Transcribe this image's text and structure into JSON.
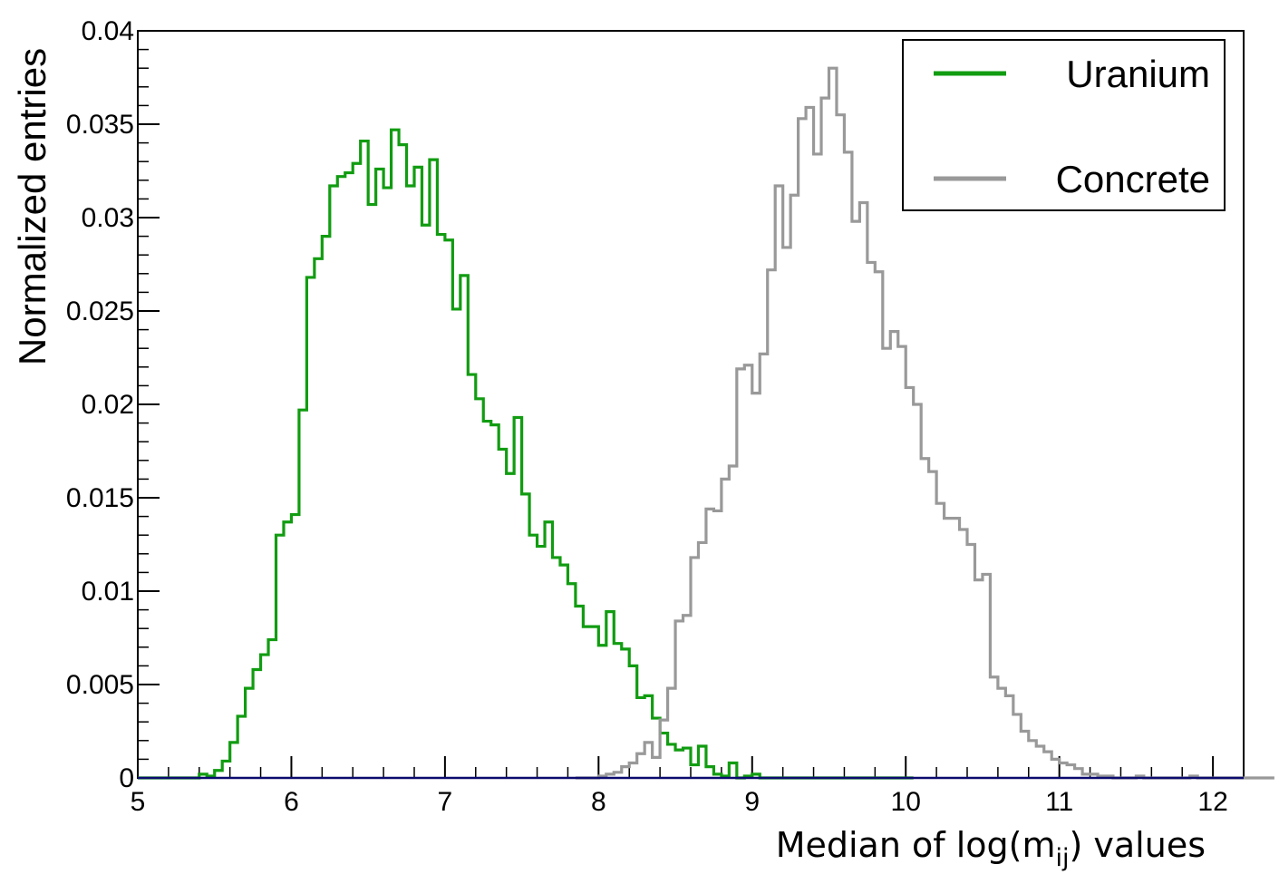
{
  "chart_data": {
    "type": "histogram",
    "xlabel_main": "Median of log(m",
    "xlabel_sub": "ij",
    "xlabel_tail": ") values",
    "ylabel": "Normalized entries",
    "xlim": [
      5,
      12.2
    ],
    "ylim": [
      0,
      0.04
    ],
    "grid": false,
    "legend_position": "top-right",
    "x_ticks": [
      "5",
      "6",
      "7",
      "8",
      "9",
      "10",
      "11",
      "12"
    ],
    "y_ticks": [
      "0",
      "0.005",
      "0.01",
      "0.015",
      "0.02",
      "0.025",
      "0.03",
      "0.035",
      "0.04"
    ],
    "bin_width": 0.05,
    "series": [
      {
        "name": "Uranium",
        "color": "#119c11",
        "x_start": 5.0,
        "values": [
          0,
          0,
          0,
          0,
          0,
          0,
          0,
          0,
          0.0002,
          0.0001,
          0.0004,
          0.0009,
          0.0019,
          0.0033,
          0.0048,
          0.0058,
          0.0066,
          0.0074,
          0.013,
          0.0137,
          0.0141,
          0.0197,
          0.0268,
          0.0278,
          0.029,
          0.0317,
          0.0322,
          0.0324,
          0.0329,
          0.0341,
          0.0307,
          0.0326,
          0.0316,
          0.0347,
          0.0339,
          0.0317,
          0.0327,
          0.0296,
          0.0331,
          0.0291,
          0.0288,
          0.0251,
          0.0269,
          0.0216,
          0.0203,
          0.0191,
          0.0189,
          0.0176,
          0.0163,
          0.0193,
          0.0152,
          0.013,
          0.0124,
          0.0137,
          0.0118,
          0.0114,
          0.0104,
          0.0092,
          0.0081,
          0.0081,
          0.0071,
          0.0089,
          0.0072,
          0.0069,
          0.006,
          0.0043,
          0.0044,
          0.0032,
          0.0024,
          0.0018,
          0.0015,
          0.0016,
          0.0007,
          0.0017,
          0.0006,
          0.0002,
          0.0001,
          0.0008,
          0,
          0.0001,
          0.0002,
          0,
          0,
          0,
          0,
          0,
          0,
          0,
          0,
          0,
          0,
          0,
          0,
          0,
          0,
          0,
          0,
          0,
          0,
          0,
          0
        ],
        "x_end": 10.05
      },
      {
        "name": "Concrete",
        "color": "#999999",
        "x_start": 7.85,
        "values": [
          0,
          0,
          0,
          0.0001,
          0.0002,
          0.0003,
          0.0006,
          0.0008,
          0.0013,
          0.0019,
          0.0011,
          0.0031,
          0.0048,
          0.0084,
          0.0087,
          0.0118,
          0.0126,
          0.0144,
          0.0143,
          0.016,
          0.0167,
          0.0219,
          0.0221,
          0.0206,
          0.0227,
          0.0272,
          0.0317,
          0.0284,
          0.0312,
          0.0353,
          0.0359,
          0.0334,
          0.0364,
          0.038,
          0.0355,
          0.0335,
          0.0298,
          0.0308,
          0.0276,
          0.0271,
          0.023,
          0.0239,
          0.0231,
          0.0209,
          0.02,
          0.0171,
          0.0164,
          0.0147,
          0.0139,
          0.0139,
          0.0133,
          0.0125,
          0.0106,
          0.0109,
          0.0054,
          0.0048,
          0.0044,
          0.0034,
          0.0025,
          0.002,
          0.0017,
          0.0014,
          0.001,
          0.0008,
          0.0007,
          0.0005,
          0.0002,
          0.0002,
          0.0001,
          0.0001,
          0,
          0,
          0,
          0.0001,
          0,
          0,
          0,
          0,
          0,
          0,
          0.0001,
          0,
          0,
          0,
          0,
          0,
          0,
          0,
          0,
          0,
          0
        ],
        "x_end": 12.4
      }
    ]
  }
}
